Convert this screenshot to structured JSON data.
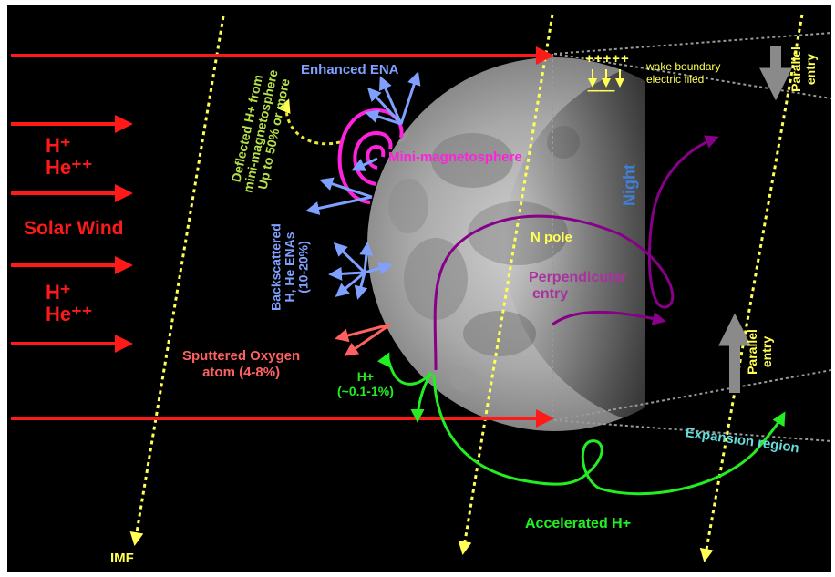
{
  "labels": {
    "h_plus": "H⁺",
    "he_plus_plus": "He⁺⁺",
    "solar_wind": "Solar Wind",
    "imf": "IMF",
    "deflected_h": [
      "Deflected H+ from",
      "mini-magnetosphere",
      "Up to 50% or more"
    ],
    "enhanced_ena": "Enhanced ENA",
    "mini_magnetosphere": "Mini-magnetosphere",
    "backscattered": [
      "Backscattered",
      "H, He  ENAs",
      "(10-20%)"
    ],
    "sputtered": [
      "Sputtered Oxygen",
      "atom (4-8%)"
    ],
    "h_plus_small": [
      "H+",
      "(~0.1-1%)"
    ],
    "wake_boundary": [
      "wake boundary",
      "electric filed"
    ],
    "wake_plus": "+++++",
    "wake_minus": "---------",
    "night": "Night",
    "n_pole": "N pole",
    "perpendicular": [
      "Perpendicular",
      "entry"
    ],
    "parallel_entry": [
      "Parallel",
      "entry"
    ],
    "expansion_region": "Expansion region",
    "accelerated_h": "Accelerated H+"
  },
  "colors": {
    "solar_wind": "#ff1a1a",
    "imf": "#ffff55",
    "ena": "#7fa0ff",
    "magnetosphere": "#ff22dd",
    "sputtered": "#ff6060",
    "green": "#22ee22",
    "purple": "#880088",
    "expansion": "#66dddd",
    "night": "#3f7fd6",
    "parallel_arrow": "#8a8a8a",
    "deflected_text": "#b6e04a",
    "perpendicular_text": "#a8329e"
  }
}
